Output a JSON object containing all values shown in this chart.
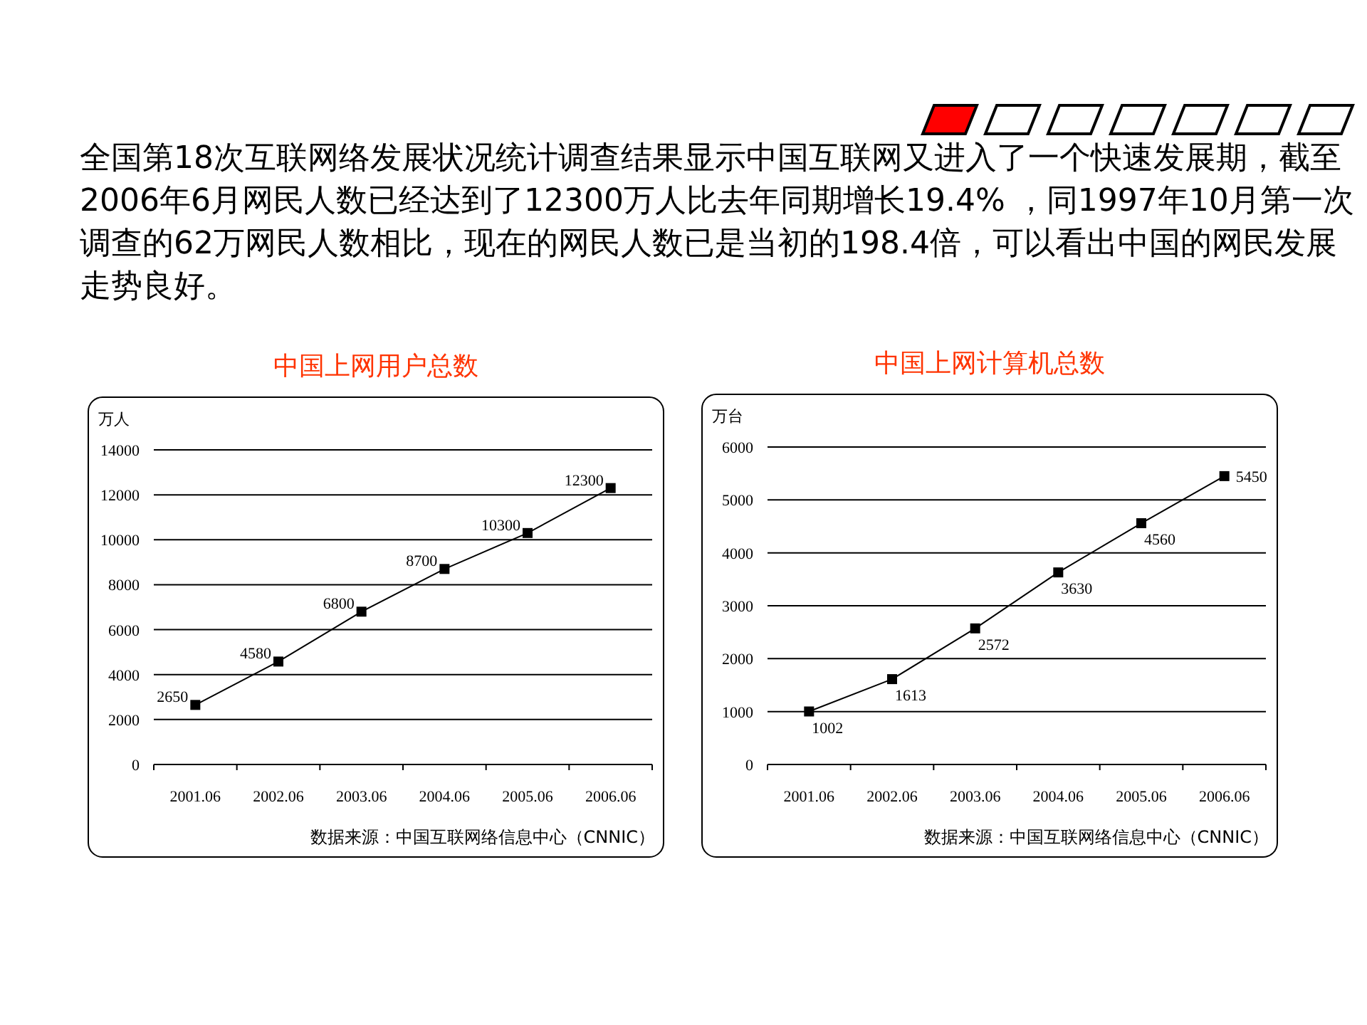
{
  "chart_data": [
    {
      "type": "other",
      "annotations": [
        "全国第18次互联网络发展状况统计调查结果显示中国互联网又进入了一个快速发展期，截至2006年6月网民人数已经达到了12300万人比去年同期增长19.4% ，同1997年10月第一次调查的62万网民人数相比，现在的网民人数已是当初的198.4倍，可以看出中国的网民发展走势良好。"
      ]
    },
    {
      "type": "line",
      "title": "中国上网用户总数",
      "ylabel": "万人",
      "categories": [
        "2001.06",
        "2002.06",
        "2003.06",
        "2004.06",
        "2005.06",
        "2006.06"
      ],
      "series": [
        {
          "color": "#000000",
          "values": [
            2650,
            4580,
            6800,
            8700,
            10300,
            12300
          ]
        }
      ],
      "ylim": [
        0,
        14000
      ],
      "yticks": [
        0,
        2000,
        4000,
        6000,
        8000,
        10000,
        12000,
        14000
      ],
      "grid": "y",
      "marker": "square",
      "data_labels": true,
      "annotations": [
        "数据来源：中国互联网络信息中心（CNNIC）"
      ]
    },
    {
      "type": "line",
      "title": "中国上网计算机总数",
      "ylabel": "万台",
      "categories": [
        "2001.06",
        "2002.06",
        "2003.06",
        "2004.06",
        "2005.06",
        "2006.06"
      ],
      "series": [
        {
          "color": "#000000",
          "values": [
            1002,
            1613,
            2572,
            3630,
            4560,
            5450
          ]
        }
      ],
      "ylim": [
        0,
        6000
      ],
      "yticks": [
        0,
        1000,
        2000,
        3000,
        4000,
        5000,
        6000
      ],
      "grid": "y",
      "marker": "square",
      "data_labels": true,
      "annotations": [
        "数据来源：中国互联网络信息中心（CNNIC）"
      ]
    }
  ]
}
